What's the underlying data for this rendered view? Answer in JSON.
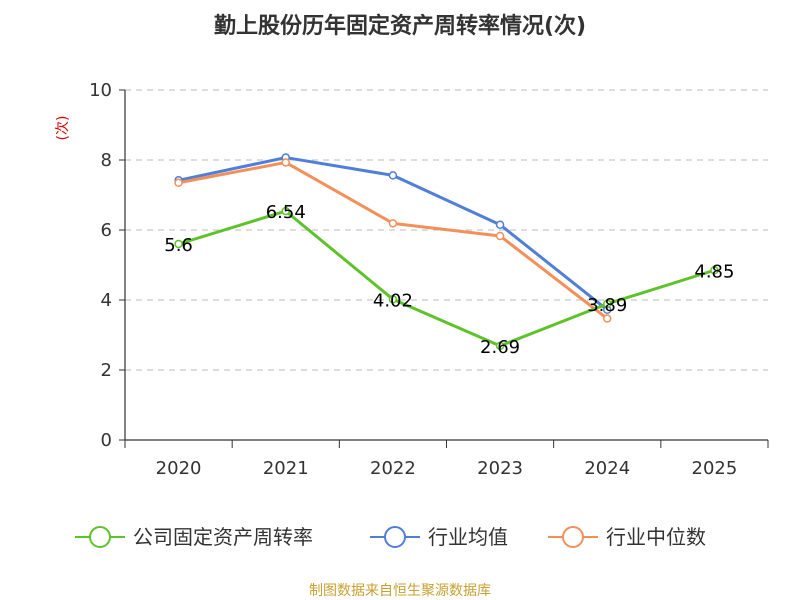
{
  "chart_data": {
    "type": "line",
    "title": "勤上股份历年固定资产周转率情况(次)",
    "ylabel": "(次)",
    "xlabel": "",
    "categories": [
      "2020",
      "2021",
      "2022",
      "2023",
      "2024",
      "2025"
    ],
    "ylim": [
      0,
      10
    ],
    "yticks": [
      0,
      2,
      4,
      6,
      8,
      10
    ],
    "grid": true,
    "legend_position": "bottom",
    "series": [
      {
        "name": "公司固定资产周转率",
        "color": "#5ec22a",
        "values": [
          5.6,
          6.54,
          4.02,
          2.69,
          3.89,
          4.85
        ],
        "labels": [
          "5.6",
          "6.54",
          "4.02",
          "2.69",
          "3.89",
          "4.85"
        ]
      },
      {
        "name": "行业均值",
        "color": "#4f7fd8",
        "values": [
          7.42,
          8.07,
          7.56,
          6.15,
          3.72,
          null
        ]
      },
      {
        "name": "行业中位数",
        "color": "#f39059",
        "values": [
          7.35,
          7.93,
          6.19,
          5.83,
          3.47,
          null
        ]
      }
    ]
  },
  "source": "制图数据来自恒生聚源数据库",
  "colors": {
    "unit_label": "#dd0000",
    "source_text": "#c8a032",
    "axis": "#333333",
    "grid": "#bbbbbb"
  }
}
